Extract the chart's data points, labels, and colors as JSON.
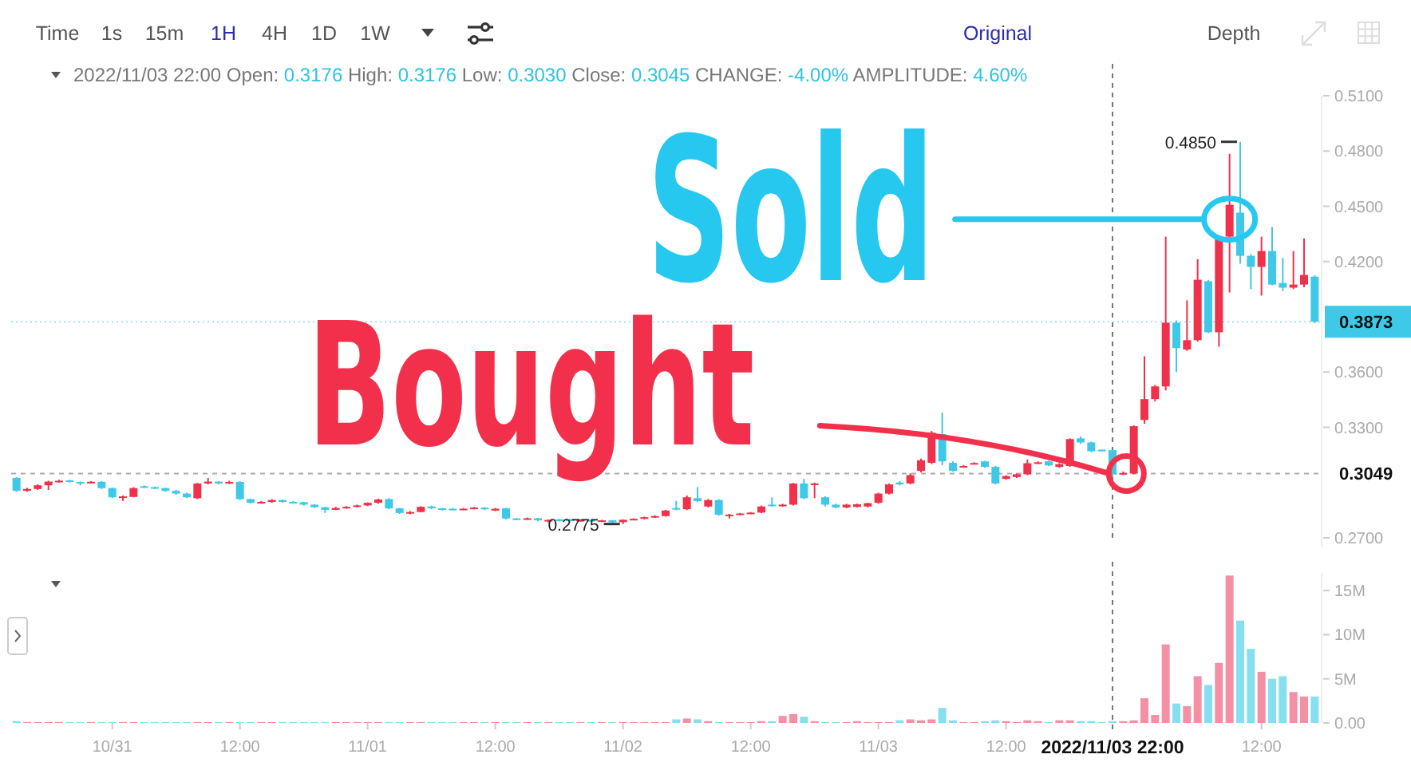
{
  "chart_data": [
    {
      "type": "candlestick",
      "x": [
        "2022-10-30T15:00",
        "2022-10-30T16:00",
        "2022-10-30T17:00",
        "2022-10-30T18:00",
        "2022-10-30T19:00",
        "2022-10-30T20:00",
        "2022-10-30T21:00",
        "2022-10-30T22:00",
        "2022-10-30T23:00",
        "2022-10-31T00:00",
        "2022-10-31T01:00",
        "2022-10-31T02:00",
        "2022-10-31T03:00",
        "2022-10-31T04:00",
        "2022-10-31T05:00",
        "2022-10-31T06:00",
        "2022-10-31T07:00",
        "2022-10-31T08:00",
        "2022-10-31T09:00",
        "2022-10-31T10:00",
        "2022-10-31T11:00",
        "2022-10-31T12:00",
        "2022-10-31T13:00",
        "2022-10-31T14:00",
        "2022-10-31T15:00",
        "2022-10-31T16:00",
        "2022-10-31T17:00",
        "2022-10-31T18:00",
        "2022-10-31T19:00",
        "2022-10-31T20:00",
        "2022-10-31T21:00",
        "2022-10-31T22:00",
        "2022-10-31T23:00",
        "2022-11-01T00:00",
        "2022-11-01T01:00",
        "2022-11-01T02:00",
        "2022-11-01T03:00",
        "2022-11-01T04:00",
        "2022-11-01T05:00",
        "2022-11-01T06:00",
        "2022-11-01T07:00",
        "2022-11-01T08:00",
        "2022-11-01T09:00",
        "2022-11-01T10:00",
        "2022-11-01T11:00",
        "2022-11-01T12:00",
        "2022-11-01T13:00",
        "2022-11-01T14:00",
        "2022-11-01T15:00",
        "2022-11-01T16:00",
        "2022-11-01T17:00",
        "2022-11-01T18:00",
        "2022-11-01T19:00",
        "2022-11-01T20:00",
        "2022-11-01T21:00",
        "2022-11-01T22:00",
        "2022-11-01T23:00",
        "2022-11-02T00:00",
        "2022-11-02T01:00",
        "2022-11-02T02:00",
        "2022-11-02T03:00",
        "2022-11-02T04:00",
        "2022-11-02T05:00",
        "2022-11-02T06:00",
        "2022-11-02T07:00",
        "2022-11-02T08:00",
        "2022-11-02T09:00",
        "2022-11-02T10:00",
        "2022-11-02T11:00",
        "2022-11-02T12:00",
        "2022-11-02T13:00",
        "2022-11-02T14:00",
        "2022-11-02T15:00",
        "2022-11-02T16:00",
        "2022-11-02T17:00",
        "2022-11-02T18:00",
        "2022-11-02T19:00",
        "2022-11-02T20:00",
        "2022-11-02T21:00",
        "2022-11-02T22:00",
        "2022-11-02T23:00",
        "2022-11-03T00:00",
        "2022-11-03T01:00",
        "2022-11-03T02:00",
        "2022-11-03T03:00",
        "2022-11-03T04:00",
        "2022-11-03T05:00",
        "2022-11-03T06:00",
        "2022-11-03T07:00",
        "2022-11-03T08:00",
        "2022-11-03T09:00",
        "2022-11-03T10:00",
        "2022-11-03T11:00",
        "2022-11-03T12:00",
        "2022-11-03T13:00",
        "2022-11-03T14:00",
        "2022-11-03T15:00",
        "2022-11-03T16:00",
        "2022-11-03T17:00",
        "2022-11-03T18:00",
        "2022-11-03T19:00",
        "2022-11-03T20:00",
        "2022-11-03T21:00",
        "2022-11-03T22:00",
        "2022-11-03T23:00",
        "2022-11-04T00:00",
        "2022-11-04T01:00",
        "2022-11-04T02:00",
        "2022-11-04T03:00",
        "2022-11-04T04:00",
        "2022-11-04T05:00",
        "2022-11-04T06:00",
        "2022-11-04T07:00",
        "2022-11-04T08:00",
        "2022-11-04T09:00",
        "2022-11-04T10:00",
        "2022-11-04T11:00",
        "2022-11-04T12:00",
        "2022-11-04T13:00",
        "2022-11-04T14:00",
        "2022-11-04T15:00",
        "2022-11-04T16:00",
        "2022-11-04T17:00"
      ],
      "ohlc": [
        [
          0.3025,
          0.303,
          0.295,
          0.2955
        ],
        [
          0.2955,
          0.2972,
          0.295,
          0.2965
        ],
        [
          0.2965,
          0.299,
          0.296,
          0.2985
        ],
        [
          0.2985,
          0.301,
          0.296,
          0.3005
        ],
        [
          0.3005,
          0.3015,
          0.3,
          0.301
        ],
        [
          0.3012,
          0.3015,
          0.3,
          0.3003
        ],
        [
          0.3003,
          0.3006,
          0.2985,
          0.3
        ],
        [
          0.2998,
          0.3008,
          0.2995,
          0.3004
        ],
        [
          0.3004,
          0.3008,
          0.2965,
          0.297
        ],
        [
          0.297,
          0.2972,
          0.2915,
          0.292
        ],
        [
          0.292,
          0.293,
          0.29,
          0.2925
        ],
        [
          0.2922,
          0.2975,
          0.292,
          0.297
        ],
        [
          0.298,
          0.2985,
          0.297,
          0.2975
        ],
        [
          0.2975,
          0.2978,
          0.2965,
          0.297
        ],
        [
          0.297,
          0.2972,
          0.295,
          0.2955
        ],
        [
          0.2955,
          0.296,
          0.2935,
          0.294
        ],
        [
          0.294,
          0.2945,
          0.2915,
          0.292
        ],
        [
          0.2915,
          0.2998,
          0.291,
          0.2995
        ],
        [
          0.2995,
          0.3025,
          0.299,
          0.3005
        ],
        [
          0.3005,
          0.3008,
          0.299,
          0.2995
        ],
        [
          0.2995,
          0.301,
          0.2992,
          0.3003
        ],
        [
          0.3003,
          0.3008,
          0.2905,
          0.291
        ],
        [
          0.291,
          0.2912,
          0.2885,
          0.289
        ],
        [
          0.289,
          0.29,
          0.2885,
          0.2895
        ],
        [
          0.2895,
          0.291,
          0.289,
          0.2905
        ],
        [
          0.2905,
          0.2908,
          0.289,
          0.2895
        ],
        [
          0.2895,
          0.29,
          0.2888,
          0.2893
        ],
        [
          0.2893,
          0.2895,
          0.2875,
          0.288
        ],
        [
          0.288,
          0.2883,
          0.2862,
          0.2866
        ],
        [
          0.2866,
          0.2868,
          0.2835,
          0.2852
        ],
        [
          0.2852,
          0.2868,
          0.285,
          0.2862
        ],
        [
          0.2862,
          0.2872,
          0.2858,
          0.2868
        ],
        [
          0.2868,
          0.288,
          0.2865,
          0.2876
        ],
        [
          0.2876,
          0.2892,
          0.2872,
          0.289
        ],
        [
          0.289,
          0.2912,
          0.2885,
          0.2908
        ],
        [
          0.291,
          0.2915,
          0.2855,
          0.286
        ],
        [
          0.286,
          0.2862,
          0.283,
          0.2835
        ],
        [
          0.2835,
          0.2845,
          0.2828,
          0.284
        ],
        [
          0.284,
          0.2872,
          0.2838,
          0.2868
        ],
        [
          0.287,
          0.2875,
          0.2855,
          0.286
        ],
        [
          0.286,
          0.2862,
          0.2848,
          0.2852
        ],
        [
          0.2858,
          0.2862,
          0.2848,
          0.2852
        ],
        [
          0.2852,
          0.2862,
          0.285,
          0.2858
        ],
        [
          0.2858,
          0.2868,
          0.2855,
          0.2864
        ],
        [
          0.2864,
          0.2866,
          0.285,
          0.2855
        ],
        [
          0.2848,
          0.2862,
          0.2845,
          0.2858
        ],
        [
          0.286,
          0.2862,
          0.28,
          0.2805
        ],
        [
          0.2805,
          0.2808,
          0.2798,
          0.2802
        ],
        [
          0.2802,
          0.281,
          0.2798,
          0.2806
        ],
        [
          0.2806,
          0.2808,
          0.279,
          0.2795
        ],
        [
          0.279,
          0.28,
          0.2784,
          0.2797
        ],
        [
          0.28,
          0.2803,
          0.2788,
          0.2792
        ],
        [
          0.28,
          0.2803,
          0.279,
          0.2794
        ],
        [
          0.2794,
          0.28,
          0.2788,
          0.2797
        ],
        [
          0.2797,
          0.2799,
          0.2786,
          0.279
        ],
        [
          0.279,
          0.2798,
          0.2785,
          0.2795
        ],
        [
          0.2795,
          0.2797,
          0.278,
          0.2785
        ],
        [
          0.2785,
          0.28,
          0.2775,
          0.2798
        ],
        [
          0.2798,
          0.2806,
          0.2795,
          0.2803
        ],
        [
          0.2803,
          0.2815,
          0.28,
          0.2812
        ],
        [
          0.2812,
          0.2822,
          0.2808,
          0.2818
        ],
        [
          0.2818,
          0.2852,
          0.2815,
          0.2848
        ],
        [
          0.2862,
          0.29,
          0.285,
          0.2855
        ],
        [
          0.2855,
          0.293,
          0.285,
          0.292
        ],
        [
          0.2915,
          0.2975,
          0.2895,
          0.29
        ],
        [
          0.287,
          0.291,
          0.2865,
          0.2905
        ],
        [
          0.2905,
          0.291,
          0.282,
          0.2825
        ],
        [
          0.282,
          0.283,
          0.2805,
          0.2826
        ],
        [
          0.2826,
          0.2835,
          0.2822,
          0.2832
        ],
        [
          0.2832,
          0.284,
          0.2828,
          0.2837
        ],
        [
          0.2837,
          0.2875,
          0.2833,
          0.287
        ],
        [
          0.288,
          0.292,
          0.287,
          0.2875
        ],
        [
          0.2872,
          0.2885,
          0.2868,
          0.288
        ],
        [
          0.288,
          0.2998,
          0.2875,
          0.2995
        ],
        [
          0.2995,
          0.302,
          0.291,
          0.2915
        ],
        [
          0.299,
          0.3,
          0.2915,
          0.2995
        ],
        [
          0.292,
          0.2925,
          0.287,
          0.288
        ],
        [
          0.288,
          0.2885,
          0.286,
          0.2865
        ],
        [
          0.2865,
          0.2885,
          0.286,
          0.288
        ],
        [
          0.2868,
          0.2885,
          0.2865,
          0.2882
        ],
        [
          0.287,
          0.289,
          0.2865,
          0.2888
        ],
        [
          0.289,
          0.2945,
          0.2885,
          0.294
        ],
        [
          0.294,
          0.2995,
          0.2935,
          0.299
        ],
        [
          0.3,
          0.3008,
          0.2985,
          0.299
        ],
        [
          0.2995,
          0.305,
          0.299,
          0.304
        ],
        [
          0.3063,
          0.313,
          0.3055,
          0.3121
        ],
        [
          0.3107,
          0.328,
          0.31,
          0.3271
        ],
        [
          0.3262,
          0.338,
          0.3095,
          0.3115
        ],
        [
          0.3107,
          0.3115,
          0.306,
          0.3063
        ],
        [
          0.3085,
          0.3095,
          0.308,
          0.309
        ],
        [
          0.31,
          0.311,
          0.3098,
          0.3106
        ],
        [
          0.3115,
          0.3118,
          0.308,
          0.3085
        ],
        [
          0.3085,
          0.309,
          0.299,
          0.2995
        ],
        [
          0.302,
          0.304,
          0.3015,
          0.3035
        ],
        [
          0.303,
          0.305,
          0.3025,
          0.3045
        ],
        [
          0.3045,
          0.3125,
          0.304,
          0.3105
        ],
        [
          0.3105,
          0.3115,
          0.31,
          0.311
        ],
        [
          0.3115,
          0.3118,
          0.309,
          0.3093
        ],
        [
          0.3085,
          0.3105,
          0.308,
          0.31
        ],
        [
          0.309,
          0.324,
          0.3085,
          0.3236
        ],
        [
          0.324,
          0.325,
          0.321,
          0.3218
        ],
        [
          0.3218,
          0.3222,
          0.3165,
          0.317
        ],
        [
          0.3178,
          0.318,
          0.317,
          0.3172
        ],
        [
          0.3176,
          0.3176,
          0.303,
          0.3045
        ],
        [
          0.3045,
          0.306,
          0.304,
          0.3052
        ],
        [
          0.3049,
          0.331,
          0.3045,
          0.3306
        ],
        [
          0.334,
          0.3686,
          0.332,
          0.3453
        ],
        [
          0.3453,
          0.353,
          0.344,
          0.3522
        ],
        [
          0.3522,
          0.4335,
          0.35,
          0.3868
        ],
        [
          0.3868,
          0.388,
          0.36,
          0.373
        ],
        [
          0.3722,
          0.3989,
          0.3715,
          0.3773
        ],
        [
          0.3773,
          0.4213,
          0.3765,
          0.4101
        ],
        [
          0.4093,
          0.41,
          0.381,
          0.3816
        ],
        [
          0.3816,
          0.4335,
          0.3738,
          0.4335
        ],
        [
          0.4335,
          0.4785,
          0.4032,
          0.4508
        ],
        [
          0.4465,
          0.485,
          0.4188,
          0.4231
        ],
        [
          0.4231,
          0.424,
          0.405,
          0.4171
        ],
        [
          0.4171,
          0.4335,
          0.4015,
          0.4257
        ],
        [
          0.4257,
          0.4387,
          0.407,
          0.4075
        ],
        [
          0.4083,
          0.422,
          0.404,
          0.4058
        ],
        [
          0.4058,
          0.4257,
          0.405,
          0.4075
        ],
        [
          0.4075,
          0.4326,
          0.406,
          0.4127
        ],
        [
          0.4118,
          0.4125,
          0.3865,
          0.3873
        ]
      ],
      "colors": [
        "#3ec9e8",
        "#f0314b",
        "#f0314b",
        "#f0314b",
        "#f0314b",
        "#3ec9e8",
        "#3ec9e8",
        "#f0314b",
        "#3ec9e8",
        "#3ec9e8",
        "#f0314b",
        "#f0314b",
        "#3ec9e8",
        "#3ec9e8",
        "#3ec9e8",
        "#3ec9e8",
        "#3ec9e8",
        "#f0314b",
        "#f0314b",
        "#3ec9e8",
        "#f0314b",
        "#3ec9e8",
        "#3ec9e8",
        "#f0314b",
        "#f0314b",
        "#3ec9e8",
        "#3ec9e8",
        "#3ec9e8",
        "#3ec9e8",
        "#3ec9e8",
        "#f0314b",
        "#f0314b",
        "#f0314b",
        "#f0314b",
        "#f0314b",
        "#3ec9e8",
        "#3ec9e8",
        "#f0314b",
        "#f0314b",
        "#3ec9e8",
        "#3ec9e8",
        "#3ec9e8",
        "#f0314b",
        "#f0314b",
        "#3ec9e8",
        "#f0314b",
        "#3ec9e8",
        "#3ec9e8",
        "#f0314b",
        "#3ec9e8",
        "#f0314b",
        "#3ec9e8",
        "#3ec9e8",
        "#f0314b",
        "#3ec9e8",
        "#f0314b",
        "#3ec9e8",
        "#f0314b",
        "#f0314b",
        "#f0314b",
        "#f0314b",
        "#f0314b",
        "#3ec9e8",
        "#f0314b",
        "#3ec9e8",
        "#f0314b",
        "#3ec9e8",
        "#f0314b",
        "#f0314b",
        "#f0314b",
        "#f0314b",
        "#3ec9e8",
        "#f0314b",
        "#f0314b",
        "#3ec9e8",
        "#f0314b",
        "#3ec9e8",
        "#3ec9e8",
        "#f0314b",
        "#f0314b",
        "#f0314b",
        "#f0314b",
        "#f0314b",
        "#3ec9e8",
        "#f0314b",
        "#f0314b",
        "#f0314b",
        "#3ec9e8",
        "#3ec9e8",
        "#f0314b",
        "#f0314b",
        "#3ec9e8",
        "#3ec9e8",
        "#f0314b",
        "#f0314b",
        "#f0314b",
        "#f0314b",
        "#3ec9e8",
        "#f0314b",
        "#f0314b",
        "#3ec9e8",
        "#3ec9e8",
        "#3ec9e8",
        "#3ec9e8",
        "#f0314b",
        "#f0314b",
        "#f0314b",
        "#f0314b",
        "#f0314b",
        "#3ec9e8",
        "#f0314b",
        "#f0314b",
        "#3ec9e8",
        "#f0314b",
        "#f0314b",
        "#3ec9e8",
        "#3ec9e8",
        "#f0314b",
        "#3ec9e8",
        "#3ec9e8",
        "#f0314b",
        "#f0314b",
        "#3ec9e8"
      ],
      "xlim": [
        "2022-10-30T14:30",
        "2022-11-04T17:30"
      ],
      "ylim": [
        0.27,
        0.51
      ],
      "yticks": [
        {
          "value": 0.27,
          "label": "0.2700"
        },
        {
          "value": 0.33,
          "label": "0.3300"
        },
        {
          "value": 0.36,
          "label": "0.3600"
        },
        {
          "value": 0.42,
          "label": "0.4200"
        },
        {
          "value": 0.45,
          "label": "0.4500"
        },
        {
          "value": 0.48,
          "label": "0.4800"
        },
        {
          "value": 0.51,
          "label": "0.5100"
        }
      ],
      "tick_labels": "y",
      "ref_lines": [
        {
          "axis": "x",
          "value": "2022-11-03T22:00",
          "line_style": "dashed"
        },
        {
          "axis": "y",
          "value": 0.3049,
          "label": "0.3049",
          "line_style": "dashed"
        },
        {
          "axis": "y",
          "value": 0.3873,
          "label": "0.3873",
          "color": "#3ec9e8",
          "line_style": "dotted"
        }
      ],
      "annotations": [
        "Time",
        "1s",
        "15m",
        "1H",
        "4H",
        "1D",
        "1W",
        "Original",
        "Depth",
        "2022/11/03 22:00 Open: 0.3176 High: 0.3176 Low: 0.3030 Close: 0.3045 CHANGE: -4.00% AMPLITUDE: 4.60%",
        {
          "text": "0.4850",
          "x": "2022-11-04T10:00",
          "y": 0.485
        },
        {
          "text": "0.2775",
          "x": "2022-11-02T00:00",
          "y": 0.2775
        },
        {
          "text": "Sold",
          "x": "2022-11-04T09:00",
          "y": 0.4508
        },
        {
          "text": "Bought",
          "x": "2022-11-03T23:00",
          "y": 0.3049
        }
      ]
    },
    {
      "type": "bar",
      "x": [
        "2022-10-30T15:00",
        "2022-10-30T16:00",
        "2022-10-30T17:00",
        "2022-10-30T18:00",
        "2022-10-30T19:00",
        "2022-10-30T20:00",
        "2022-10-30T21:00",
        "2022-10-30T22:00",
        "2022-10-30T23:00",
        "2022-10-31T00:00",
        "2022-10-31T01:00",
        "2022-10-31T02:00",
        "2022-10-31T03:00",
        "2022-10-31T04:00",
        "2022-10-31T05:00",
        "2022-10-31T06:00",
        "2022-10-31T07:00",
        "2022-10-31T08:00",
        "2022-10-31T09:00",
        "2022-10-31T10:00",
        "2022-10-31T11:00",
        "2022-10-31T12:00",
        "2022-10-31T13:00",
        "2022-10-31T14:00",
        "2022-10-31T15:00",
        "2022-10-31T16:00",
        "2022-10-31T17:00",
        "2022-10-31T18:00",
        "2022-10-31T19:00",
        "2022-10-31T20:00",
        "2022-10-31T21:00",
        "2022-10-31T22:00",
        "2022-10-31T23:00",
        "2022-11-01T00:00",
        "2022-11-01T01:00",
        "2022-11-01T02:00",
        "2022-11-01T03:00",
        "2022-11-01T04:00",
        "2022-11-01T05:00",
        "2022-11-01T06:00",
        "2022-11-01T07:00",
        "2022-11-01T08:00",
        "2022-11-01T09:00",
        "2022-11-01T10:00",
        "2022-11-01T11:00",
        "2022-11-01T12:00",
        "2022-11-01T13:00",
        "2022-11-01T14:00",
        "2022-11-01T15:00",
        "2022-11-01T16:00",
        "2022-11-01T17:00",
        "2022-11-01T18:00",
        "2022-11-01T19:00",
        "2022-11-01T20:00",
        "2022-11-01T21:00",
        "2022-11-01T22:00",
        "2022-11-01T23:00",
        "2022-11-02T00:00",
        "2022-11-02T01:00",
        "2022-11-02T02:00",
        "2022-11-02T03:00",
        "2022-11-02T04:00",
        "2022-11-02T05:00",
        "2022-11-02T06:00",
        "2022-11-02T07:00",
        "2022-11-02T08:00",
        "2022-11-02T09:00",
        "2022-11-02T10:00",
        "2022-11-02T11:00",
        "2022-11-02T12:00",
        "2022-11-02T13:00",
        "2022-11-02T14:00",
        "2022-11-02T15:00",
        "2022-11-02T16:00",
        "2022-11-02T17:00",
        "2022-11-02T18:00",
        "2022-11-02T19:00",
        "2022-11-02T20:00",
        "2022-11-02T21:00",
        "2022-11-02T22:00",
        "2022-11-02T23:00",
        "2022-11-03T00:00",
        "2022-11-03T01:00",
        "2022-11-03T02:00",
        "2022-11-03T03:00",
        "2022-11-03T04:00",
        "2022-11-03T05:00",
        "2022-11-03T06:00",
        "2022-11-03T07:00",
        "2022-11-03T08:00",
        "2022-11-03T09:00",
        "2022-11-03T10:00",
        "2022-11-03T11:00",
        "2022-11-03T12:00",
        "2022-11-03T13:00",
        "2022-11-03T14:00",
        "2022-11-03T15:00",
        "2022-11-03T16:00",
        "2022-11-03T17:00",
        "2022-11-03T18:00",
        "2022-11-03T19:00",
        "2022-11-03T20:00",
        "2022-11-03T21:00",
        "2022-11-03T22:00",
        "2022-11-03T23:00",
        "2022-11-04T00:00",
        "2022-11-04T01:00",
        "2022-11-04T02:00",
        "2022-11-04T03:00",
        "2022-11-04T04:00",
        "2022-11-04T05:00",
        "2022-11-04T06:00",
        "2022-11-04T07:00",
        "2022-11-04T08:00",
        "2022-11-04T09:00",
        "2022-11-04T10:00",
        "2022-11-04T11:00",
        "2022-11-04T12:00",
        "2022-11-04T13:00",
        "2022-11-04T14:00",
        "2022-11-04T15:00",
        "2022-11-04T16:00",
        "2022-11-04T17:00"
      ],
      "values": [
        0.2,
        0.1,
        0.1,
        0.1,
        0.1,
        0.1,
        0.1,
        0.1,
        0.1,
        0.1,
        0.1,
        0.1,
        0.1,
        0.1,
        0.1,
        0.1,
        0.1,
        0.1,
        0.1,
        0.1,
        0.1,
        0.1,
        0.1,
        0.1,
        0.1,
        0.1,
        0.1,
        0.1,
        0.1,
        0.1,
        0.1,
        0.1,
        0.1,
        0.1,
        0.1,
        0.1,
        0.1,
        0.1,
        0.1,
        0.1,
        0.1,
        0.1,
        0.1,
        0.1,
        0.1,
        0.1,
        0.1,
        0.1,
        0.1,
        0.1,
        0.1,
        0.1,
        0.1,
        0.1,
        0.1,
        0.1,
        0.1,
        0.1,
        0.1,
        0.1,
        0.1,
        0.1,
        0.4,
        0.5,
        0.4,
        0.2,
        0.1,
        0.1,
        0.1,
        0.1,
        0.2,
        0.2,
        0.8,
        1.0,
        0.7,
        0.2,
        0.1,
        0.1,
        0.1,
        0.2,
        0.1,
        0.1,
        0.1,
        0.3,
        0.4,
        0.3,
        0.4,
        1.7,
        0.3,
        0.1,
        0.1,
        0.2,
        0.3,
        0.2,
        0.1,
        0.3,
        0.2,
        0.1,
        0.3,
        0.3,
        0.2,
        0.2,
        0.1,
        0.2,
        0.2,
        0.3,
        2.8,
        0.9,
        8.9,
        2.2,
        1.9,
        5.3,
        4.3,
        6.8,
        16.7,
        11.6,
        8.4,
        5.8,
        5.0,
        5.3,
        3.5,
        3.0,
        3.0
      ],
      "colors": [
        "#86dfee",
        "#f590a4",
        "#f590a4",
        "#f590a4",
        "#f590a4",
        "#86dfee",
        "#86dfee",
        "#f590a4",
        "#86dfee",
        "#86dfee",
        "#f590a4",
        "#f590a4",
        "#86dfee",
        "#86dfee",
        "#86dfee",
        "#86dfee",
        "#86dfee",
        "#f590a4",
        "#f590a4",
        "#86dfee",
        "#f590a4",
        "#86dfee",
        "#86dfee",
        "#f590a4",
        "#f590a4",
        "#86dfee",
        "#86dfee",
        "#86dfee",
        "#86dfee",
        "#86dfee",
        "#f590a4",
        "#f590a4",
        "#f590a4",
        "#f590a4",
        "#f590a4",
        "#86dfee",
        "#86dfee",
        "#f590a4",
        "#f590a4",
        "#86dfee",
        "#86dfee",
        "#86dfee",
        "#f590a4",
        "#f590a4",
        "#86dfee",
        "#f590a4",
        "#86dfee",
        "#86dfee",
        "#f590a4",
        "#86dfee",
        "#f590a4",
        "#86dfee",
        "#86dfee",
        "#f590a4",
        "#86dfee",
        "#f590a4",
        "#86dfee",
        "#f590a4",
        "#f590a4",
        "#f590a4",
        "#f590a4",
        "#f590a4",
        "#86dfee",
        "#f590a4",
        "#86dfee",
        "#f590a4",
        "#86dfee",
        "#f590a4",
        "#f590a4",
        "#f590a4",
        "#f590a4",
        "#86dfee",
        "#f590a4",
        "#f590a4",
        "#86dfee",
        "#f590a4",
        "#86dfee",
        "#86dfee",
        "#f590a4",
        "#f590a4",
        "#f590a4",
        "#f590a4",
        "#f590a4",
        "#86dfee",
        "#f590a4",
        "#f590a4",
        "#f590a4",
        "#86dfee",
        "#86dfee",
        "#f590a4",
        "#f590a4",
        "#86dfee",
        "#86dfee",
        "#f590a4",
        "#f590a4",
        "#f590a4",
        "#f590a4",
        "#86dfee",
        "#f590a4",
        "#f590a4",
        "#86dfee",
        "#86dfee",
        "#86dfee",
        "#86dfee",
        "#f590a4",
        "#f590a4",
        "#f590a4",
        "#f590a4",
        "#f590a4",
        "#86dfee",
        "#f590a4",
        "#f590a4",
        "#86dfee",
        "#f590a4",
        "#f590a4",
        "#86dfee",
        "#86dfee",
        "#f590a4",
        "#86dfee",
        "#86dfee",
        "#f590a4",
        "#f590a4",
        "#86dfee"
      ],
      "xlim": [
        "2022-10-30T14:30",
        "2022-11-04T17:30"
      ],
      "ylim": [
        0,
        17
      ],
      "yticks": [
        {
          "value": 0,
          "label": "0.00"
        },
        {
          "value": 5,
          "label": "5M"
        },
        {
          "value": 10,
          "label": "10M"
        },
        {
          "value": 15,
          "label": "15M"
        }
      ],
      "xticks": [
        {
          "value": "2022-10-31",
          "label": "10/31"
        },
        {
          "value": "2022-10-31T12:00",
          "label": "12:00"
        },
        {
          "value": "2022-11-01",
          "label": "11/01"
        },
        {
          "value": "2022-11-01T12:00",
          "label": "12:00"
        },
        {
          "value": "2022-11-02",
          "label": "11/02"
        },
        {
          "value": "2022-11-02T12:00",
          "label": "12:00"
        },
        {
          "value": "2022-11-03",
          "label": "11/03"
        },
        {
          "value": "2022-11-03T12:00",
          "label": "12:00"
        },
        {
          "value": "2022-11-04T12:00",
          "label": "12:00"
        }
      ],
      "ref_lines": [
        {
          "axis": "x",
          "value": "2022-11-03T22:00",
          "label": "2022/11/03 22:00",
          "line_style": "dashed"
        }
      ]
    }
  ]
}
